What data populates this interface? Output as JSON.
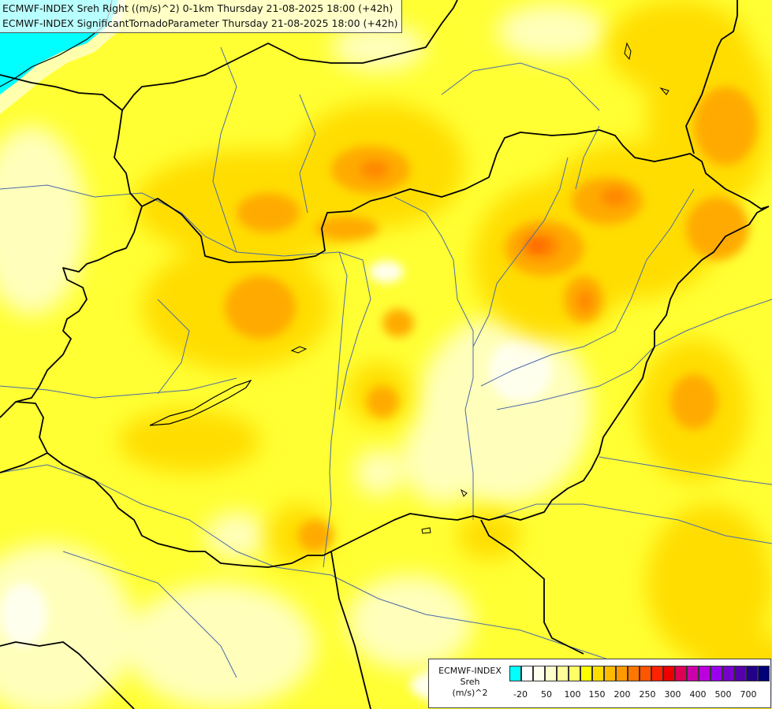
{
  "title": {
    "line1": "ECMWF-INDEX Sreh Right ((m/s)^2) 0-1km Thursday 21-08-2025 18:00 (+42h)",
    "line2": "ECMWF-INDEX SignificantTornadoParameter Thursday 21-08-2025 18:00 (+42h)"
  },
  "legend": {
    "label_line1": "ECMWF-INDEX",
    "label_line2": "Sreh",
    "label_line3": "(m/s)^2",
    "colors": [
      "#00ffff",
      "#ffffff",
      "#ffffee",
      "#ffffcc",
      "#ffff99",
      "#ffff66",
      "#ffff00",
      "#ffdd00",
      "#ffbb00",
      "#ff9900",
      "#ff7700",
      "#ff5500",
      "#ff2200",
      "#ee0000",
      "#dd0055",
      "#cc00aa",
      "#bb00dd",
      "#9900ee",
      "#7700cc",
      "#5500aa",
      "#220088",
      "#000077"
    ],
    "tick_labels": [
      "-20",
      "50",
      "100",
      "150",
      "200",
      "250",
      "300",
      "400",
      "500",
      "700"
    ]
  },
  "colors": {
    "sea": "#00ffff",
    "base": "#ffff33",
    "border": "#000000",
    "river": "#4466aa"
  }
}
